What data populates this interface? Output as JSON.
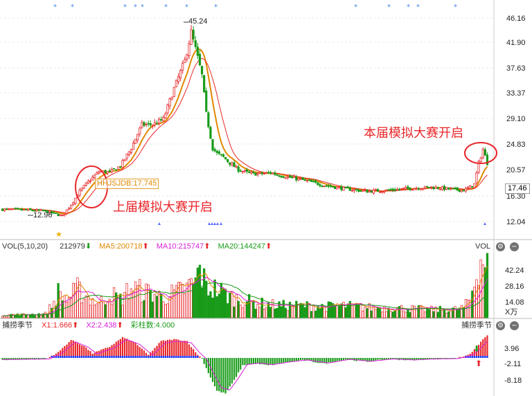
{
  "chart_data": [
    {
      "type": "candlestick",
      "panel": "price",
      "y_ticks": [
        "46.16",
        "41.90",
        "37.63",
        "33.37",
        "29.10",
        "24.83",
        "20.57",
        "16.30",
        "12.04"
      ],
      "ylim": [
        12.04,
        46.16
      ],
      "last_price": "17.46",
      "high_marker": "45.24",
      "low_marker": "12.96",
      "indicator_box": "HHJSJDB:17.745",
      "colors": {
        "up": "#e8262a",
        "down": "#199b19",
        "ma_short": "#e08800",
        "ma_long": "#e8262a"
      },
      "annotations": [
        "上届模拟大赛开启",
        "本届模拟大赛开启"
      ],
      "keypoints": [
        [
          0,
          14.3
        ],
        [
          10,
          14.2
        ],
        [
          20,
          14.0
        ],
        [
          28,
          13.2
        ],
        [
          33,
          15.6
        ],
        [
          36,
          17.3
        ],
        [
          40,
          18.9
        ],
        [
          45,
          20.6
        ],
        [
          50,
          20.5
        ],
        [
          55,
          21.5
        ],
        [
          60,
          24.5
        ],
        [
          65,
          28.4
        ],
        [
          70,
          28.4
        ],
        [
          75,
          29.3
        ],
        [
          80,
          34.4
        ],
        [
          85,
          39.0
        ],
        [
          88,
          43.8
        ],
        [
          90,
          41.0
        ],
        [
          93,
          36.6
        ],
        [
          95,
          30.2
        ],
        [
          98,
          24.5
        ],
        [
          100,
          23.6
        ],
        [
          103,
          23.0
        ],
        [
          106,
          22.0
        ],
        [
          110,
          20.9
        ],
        [
          115,
          20.3
        ],
        [
          120,
          20.2
        ],
        [
          125,
          20.4
        ],
        [
          130,
          19.9
        ],
        [
          140,
          19.2
        ],
        [
          150,
          18.3
        ],
        [
          160,
          17.7
        ],
        [
          170,
          17.3
        ],
        [
          180,
          17.5
        ],
        [
          190,
          17.8
        ],
        [
          200,
          18.0
        ],
        [
          210,
          17.6
        ],
        [
          215,
          17.5
        ],
        [
          218,
          18.0
        ],
        [
          220,
          18.5
        ],
        [
          222,
          22.0
        ],
        [
          224,
          24.3
        ],
        [
          226,
          22.0
        ]
      ]
    },
    {
      "type": "bar",
      "panel": "volume",
      "title": "VOL(5,10,20)",
      "value": "212979",
      "series": [
        {
          "name": "MA5",
          "value": "200718"
        },
        {
          "name": "MA10",
          "value": "215747"
        },
        {
          "name": "MA20",
          "value": "144247"
        }
      ],
      "y_ticks": [
        "42.24",
        "28.16",
        "14.08"
      ],
      "y_unit": "X万",
      "right_label": "VOL",
      "keypoints": [
        [
          0,
          3
        ],
        [
          10,
          3
        ],
        [
          20,
          4
        ],
        [
          24,
          15
        ],
        [
          26,
          25
        ],
        [
          30,
          18
        ],
        [
          35,
          28
        ],
        [
          40,
          20
        ],
        [
          45,
          14
        ],
        [
          50,
          24
        ],
        [
          55,
          18
        ],
        [
          60,
          30
        ],
        [
          65,
          26
        ],
        [
          70,
          24
        ],
        [
          75,
          20
        ],
        [
          80,
          24
        ],
        [
          85,
          28
        ],
        [
          90,
          35
        ],
        [
          92,
          48
        ],
        [
          95,
          30
        ],
        [
          100,
          28
        ],
        [
          105,
          22
        ],
        [
          110,
          18
        ],
        [
          115,
          16
        ],
        [
          120,
          14
        ],
        [
          130,
          12
        ],
        [
          140,
          12
        ],
        [
          150,
          11
        ],
        [
          160,
          12
        ],
        [
          170,
          10
        ],
        [
          180,
          10
        ],
        [
          190,
          9
        ],
        [
          200,
          8
        ],
        [
          210,
          8
        ],
        [
          215,
          10
        ],
        [
          218,
          18
        ],
        [
          220,
          35
        ],
        [
          222,
          55
        ],
        [
          224,
          60
        ],
        [
          226,
          50
        ]
      ],
      "ylim": [
        0,
        62
      ]
    },
    {
      "type": "bar",
      "panel": "indicator",
      "title": "捕捞季节",
      "series": [
        {
          "name": "X1",
          "value": "1.666"
        },
        {
          "name": "X2",
          "value": "2.438"
        },
        {
          "name": "彩柱数",
          "value": "4.000"
        }
      ],
      "y_ticks": [
        "3.96",
        "-2.11",
        "-8.18"
      ],
      "right_label": "捕捞季节",
      "keypoints": [
        [
          0,
          -0.5
        ],
        [
          20,
          -0.3
        ],
        [
          26,
          1.5
        ],
        [
          32,
          4.8
        ],
        [
          38,
          3.2
        ],
        [
          42,
          1.2
        ],
        [
          50,
          3.0
        ],
        [
          56,
          5.5
        ],
        [
          62,
          4.0
        ],
        [
          68,
          0.8
        ],
        [
          74,
          4.5
        ],
        [
          80,
          5.0
        ],
        [
          86,
          4.5
        ],
        [
          90,
          1.5
        ],
        [
          93,
          -0.2
        ],
        [
          96,
          -4.0
        ],
        [
          100,
          -8.8
        ],
        [
          104,
          -9.5
        ],
        [
          108,
          -6.0
        ],
        [
          112,
          -2.0
        ],
        [
          118,
          -1.5
        ],
        [
          124,
          -2.0
        ],
        [
          132,
          -1.2
        ],
        [
          140,
          -0.6
        ],
        [
          150,
          -1.5
        ],
        [
          160,
          -0.4
        ],
        [
          170,
          -1.0
        ],
        [
          180,
          -0.3
        ],
        [
          190,
          -0.6
        ],
        [
          200,
          -0.3
        ],
        [
          210,
          -0.2
        ],
        [
          215,
          0.4
        ],
        [
          218,
          1.2
        ],
        [
          220,
          2.2
        ],
        [
          222,
          3.6
        ],
        [
          224,
          5.0
        ],
        [
          226,
          6.0
        ]
      ],
      "ylim": [
        -10,
        7
      ]
    }
  ],
  "header": {
    "vol": {
      "title": "VOL(5,10,20)",
      "value": "212979",
      "ma5": "MA5:200718",
      "ma10": "MA10:215747",
      "ma20": "MA20:144247",
      "right": "VOL"
    },
    "ind": {
      "title": "捕捞季节",
      "x1": "X1:1.666",
      "x2": "X2:2.438",
      "bars": "彩柱数:4.000",
      "right": "捕捞季节"
    },
    "unit": "X万",
    "ann_prev": "上届模拟大赛开启",
    "ann_curr": "本届模拟大赛开启",
    "box": "HHJSJDB:17.745",
    "last_price": "17.46",
    "high_marker": "45.24",
    "low_marker": "12.96"
  },
  "icons": {
    "settings": "gear-icon",
    "minus": "minus-icon"
  }
}
